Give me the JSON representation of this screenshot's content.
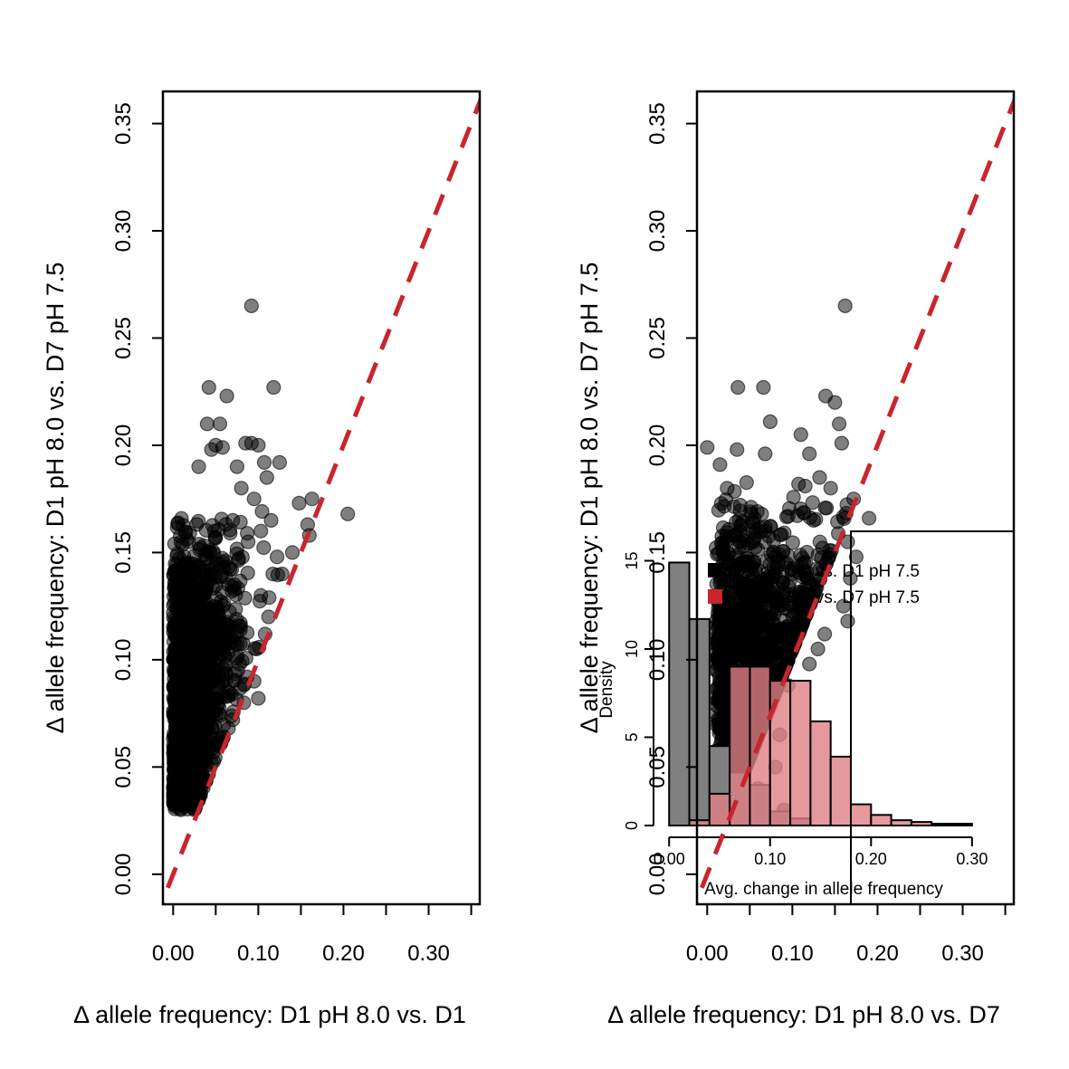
{
  "chart_data": [
    {
      "type": "scatter",
      "title": "",
      "xlabel": "Δ allele frequency: D1 pH 8.0 vs. D1",
      "ylabel": "Δ allele frequency: D1 pH 8.0 vs. D7 pH 7.5",
      "xlim": [
        -0.012,
        0.36
      ],
      "ylim": [
        -0.014,
        0.365
      ],
      "x_ticks": [
        0.0,
        0.05,
        0.1,
        0.15,
        0.2,
        0.25,
        0.3,
        0.35
      ],
      "x_tick_labels": [
        "0.00",
        "0.10",
        "0.20",
        "0.30"
      ],
      "y_ticks": [
        0.0,
        0.05,
        0.1,
        0.15,
        0.2,
        0.25,
        0.3,
        0.35
      ],
      "y_tick_labels": [
        "0.00",
        "0.05",
        "0.10",
        "0.15",
        "0.20",
        "0.25",
        "0.30",
        "0.35"
      ],
      "point_color": "#000000",
      "point_alpha": 0.5,
      "reference_line": {
        "slope": 1,
        "intercept": 0,
        "color": "#C9252C",
        "style": "dashed"
      },
      "cloud": {
        "x_max_base": 0.03,
        "y_min": 0.03,
        "y_max": 0.17
      },
      "outliers": [
        [
          0.092,
          0.265
        ],
        [
          0.042,
          0.227
        ],
        [
          0.118,
          0.227
        ],
        [
          0.063,
          0.223
        ],
        [
          0.04,
          0.21
        ],
        [
          0.055,
          0.21
        ],
        [
          0.085,
          0.201
        ],
        [
          0.092,
          0.201
        ],
        [
          0.1,
          0.2
        ],
        [
          0.05,
          0.2
        ],
        [
          0.045,
          0.198
        ],
        [
          0.058,
          0.199
        ],
        [
          0.107,
          0.192
        ],
        [
          0.125,
          0.192
        ],
        [
          0.03,
          0.19
        ],
        [
          0.075,
          0.19
        ],
        [
          0.11,
          0.185
        ],
        [
          0.148,
          0.173
        ],
        [
          0.163,
          0.175
        ],
        [
          0.205,
          0.168
        ],
        [
          0.158,
          0.163
        ],
        [
          0.16,
          0.158
        ],
        [
          0.14,
          0.15
        ],
        [
          0.122,
          0.148
        ],
        [
          0.117,
          0.14
        ],
        [
          0.128,
          0.14
        ],
        [
          0.103,
          0.13
        ],
        [
          0.112,
          0.12
        ],
        [
          0.108,
          0.112
        ],
        [
          0.098,
          0.105
        ],
        [
          0.095,
          0.09
        ],
        [
          0.1,
          0.082
        ],
        [
          0.083,
          0.08
        ],
        [
          0.07,
          0.072
        ],
        [
          0.065,
          0.068
        ],
        [
          0.052,
          0.06
        ],
        [
          0.045,
          0.052
        ],
        [
          0.035,
          0.045
        ],
        [
          0.026,
          0.032
        ],
        [
          0.01,
          0.035
        ],
        [
          0.06,
          0.115
        ],
        [
          0.072,
          0.135
        ],
        [
          0.088,
          0.155
        ],
        [
          0.07,
          0.165
        ],
        [
          0.095,
          0.175
        ],
        [
          0.08,
          0.18
        ],
        [
          0.115,
          0.165
        ],
        [
          0.103,
          0.16
        ]
      ]
    },
    {
      "type": "scatter",
      "title": "",
      "xlabel": "Δ allele frequency: D1 pH 8.0 vs. D7",
      "ylabel": "Δ allele frequency: D1 pH 8.0 vs. D7 pH 7.5",
      "xlim": [
        -0.012,
        0.36
      ],
      "ylim": [
        -0.014,
        0.365
      ],
      "x_ticks": [
        0.0,
        0.05,
        0.1,
        0.15,
        0.2,
        0.25,
        0.3,
        0.35
      ],
      "x_tick_labels": [
        "0.00",
        "0.10",
        "0.20",
        "0.30"
      ],
      "y_ticks": [
        0.0,
        0.05,
        0.1,
        0.15,
        0.2,
        0.25,
        0.3,
        0.35
      ],
      "y_tick_labels": [
        "0.00",
        "0.05",
        "0.10",
        "0.15",
        "0.20",
        "0.25",
        "0.30",
        "0.35"
      ],
      "point_color": "#000000",
      "point_alpha": 0.5,
      "reference_line": {
        "slope": 1,
        "intercept": 0,
        "color": "#C9252C",
        "style": "dashed"
      },
      "cloud": {
        "x_min": 0.01,
        "x_max_base": 0.09,
        "y_min": 0.03,
        "y_max": 0.185
      },
      "outliers": [
        [
          0.162,
          0.265
        ],
        [
          0.036,
          0.227
        ],
        [
          0.066,
          0.227
        ],
        [
          0.139,
          0.223
        ],
        [
          0.074,
          0.211
        ],
        [
          0.155,
          0.21
        ],
        [
          0.158,
          0.201
        ],
        [
          0.0,
          0.199
        ],
        [
          0.035,
          0.198
        ],
        [
          0.068,
          0.196
        ],
        [
          0.12,
          0.196
        ],
        [
          0.015,
          0.191
        ],
        [
          0.132,
          0.185
        ],
        [
          0.172,
          0.175
        ],
        [
          0.19,
          0.166
        ],
        [
          0.165,
          0.155
        ],
        [
          0.175,
          0.148
        ],
        [
          0.168,
          0.138
        ],
        [
          0.16,
          0.125
        ],
        [
          0.165,
          0.118
        ],
        [
          0.138,
          0.112
        ],
        [
          0.13,
          0.105
        ],
        [
          0.12,
          0.098
        ],
        [
          0.095,
          0.088
        ],
        [
          0.085,
          0.065
        ],
        [
          0.08,
          0.05
        ],
        [
          0.06,
          0.04
        ],
        [
          0.09,
          0.03
        ],
        [
          0.15,
          0.22
        ],
        [
          0.11,
          0.205
        ],
        [
          0.145,
          0.18
        ],
        [
          0.125,
          0.165
        ]
      ],
      "inset": {
        "type": "bar",
        "xlabel": "Avg. change in allele frequency",
        "ylabel": "Density",
        "xlim": [
          -0.002,
          0.31
        ],
        "ylim": [
          0,
          16
        ],
        "x_ticks": [
          0.0,
          0.1,
          0.2,
          0.3
        ],
        "x_tick_labels": [
          "0.00",
          "0.10",
          "0.20",
          "0.30"
        ],
        "y_ticks": [
          0,
          5,
          10,
          15
        ],
        "y_tick_labels": [
          "0",
          "5",
          "10",
          "15"
        ],
        "bin_width": 0.02,
        "legend": {
          "placement": "top-right",
          "entries": [
            {
              "label": "D1 pH 8.0 vs. D1 pH 7.5",
              "color": "#000000"
            },
            {
              "label": "D1 pH 8.0 vs. D7 pH 7.5",
              "color": "#C9252C"
            }
          ]
        },
        "series": [
          {
            "name": "D1 pH 8.0 vs. D1 pH 7.5",
            "color": "#808080",
            "bins": [
              0.0,
              0.02,
              0.04,
              0.06,
              0.08,
              0.1,
              0.12,
              0.14,
              0.16,
              0.18,
              0.2,
              0.22,
              0.24,
              0.26,
              0.28
            ],
            "values": [
              14.9,
              11.7,
              4.5,
              3.0,
              2.3,
              0.8,
              0.4,
              0,
              0,
              0,
              0,
              0,
              0,
              0,
              0
            ]
          },
          {
            "name": "D1 pH 8.0 vs. D7 pH 7.5",
            "color": "#E07F84",
            "bins": [
              0.0,
              0.02,
              0.04,
              0.06,
              0.08,
              0.1,
              0.12,
              0.14,
              0.16,
              0.18,
              0.2,
              0.22,
              0.24,
              0.26,
              0.28
            ],
            "values": [
              0,
              0.3,
              1.8,
              9.0,
              9.0,
              8.2,
              8.2,
              5.9,
              3.9,
              1.2,
              0.6,
              0.3,
              0.2,
              0.1,
              0.1
            ]
          }
        ]
      }
    }
  ]
}
